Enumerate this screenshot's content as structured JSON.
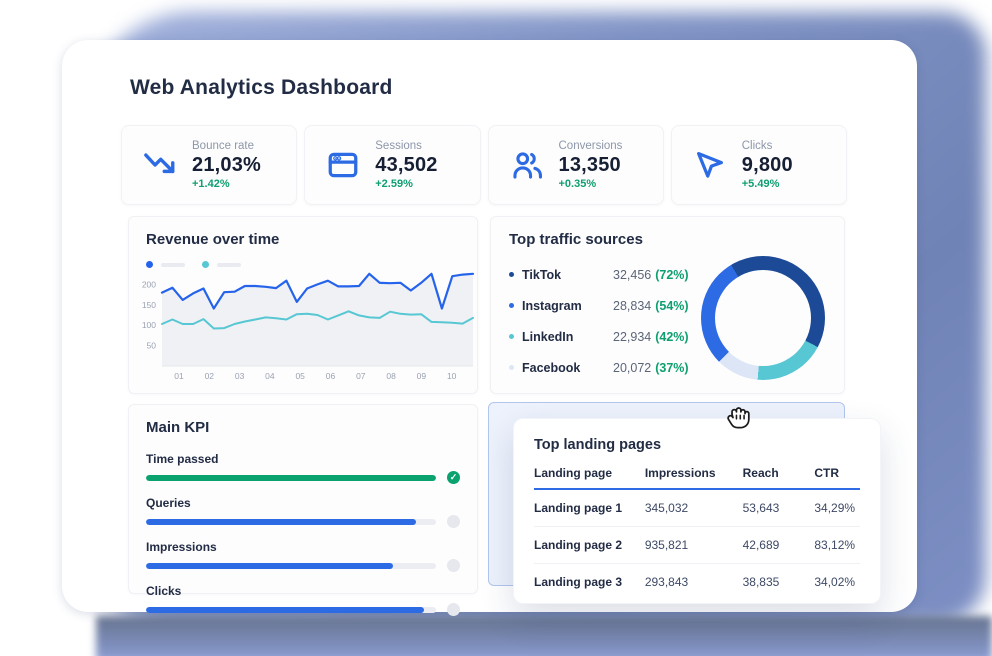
{
  "page": {
    "title": "Web Analytics Dashboard"
  },
  "colors": {
    "accent_blue": "#2c6be4",
    "line_blue": "#2563eb",
    "teal": "#56c7d3",
    "navy": "#1d4a96",
    "light_slice": "#dde6f6",
    "green_text": "#0e9f70",
    "green_bar": "#0aa26e",
    "area_fill": "#f0f1f5"
  },
  "kpi_cards": [
    {
      "icon": "trend-down-icon",
      "label": "Bounce rate",
      "value": "21,03%",
      "delta": "+1.42%"
    },
    {
      "icon": "browser-icon",
      "label": "Sessions",
      "value": "43,502",
      "delta": "+2.59%"
    },
    {
      "icon": "users-icon",
      "label": "Conversions",
      "value": "13,350",
      "delta": "+0.35%"
    },
    {
      "icon": "cursor-icon",
      "label": "Clicks",
      "value": "9,800",
      "delta": "+5.49%"
    }
  ],
  "revenue": {
    "title": "Revenue over time"
  },
  "traffic": {
    "title": "Top traffic sources",
    "sources": [
      {
        "name": "TikTok",
        "value": "32,456",
        "percent": "(72%)",
        "color": "#1d4a96"
      },
      {
        "name": "Instagram",
        "value": "28,834",
        "percent": "(54%)",
        "color": "#2c6be4"
      },
      {
        "name": "LinkedIn",
        "value": "22,934",
        "percent": "(42%)",
        "color": "#56c7d3"
      },
      {
        "name": "Facebook",
        "value": "20,072",
        "percent": "(37%)",
        "color": "#dde6f6"
      }
    ]
  },
  "main_kpi": {
    "title": "Main KPI",
    "bars": [
      {
        "label": "Time passed",
        "percent": 100,
        "color": "#0aa26e",
        "status": "done"
      },
      {
        "label": "Queries",
        "percent": 93,
        "color": "#2c6be4",
        "status": "pending"
      },
      {
        "label": "Impressions",
        "percent": 85,
        "color": "#2c6be4",
        "status": "pending"
      },
      {
        "label": "Clicks",
        "percent": 96,
        "color": "#2c6be4",
        "status": "pending"
      }
    ],
    "done_glyph": "✓"
  },
  "landing": {
    "title": "Top landing pages",
    "columns": [
      "Landing page",
      "Impressions",
      "Reach",
      "CTR"
    ],
    "rows": [
      [
        "Landing page 1",
        "345,032",
        "53,643",
        "34,29%"
      ],
      [
        "Landing page 2",
        "935,821",
        "42,689",
        "83,12%"
      ],
      [
        "Landing page 3",
        "293,843",
        "38,835",
        "34,02%"
      ]
    ]
  },
  "chart_data": [
    {
      "type": "line",
      "title": "Revenue over time",
      "x_labels": [
        "01",
        "02",
        "03",
        "04",
        "05",
        "06",
        "07",
        "08",
        "09",
        "10"
      ],
      "y_ticks": [
        50,
        100,
        150,
        200
      ],
      "ylim": [
        0,
        250
      ],
      "grid": false,
      "legend_position": "top-left",
      "series": [
        {
          "name": "revenue-primary",
          "color": "#2563eb",
          "area_fill": "#f0f1f5",
          "values": [
            180,
            192,
            162,
            178,
            190,
            141,
            181,
            182,
            196,
            196,
            194,
            191,
            209,
            157,
            190,
            200,
            209,
            195,
            195,
            196,
            226,
            204,
            203,
            204,
            185,
            204,
            226,
            141,
            220,
            224,
            226
          ]
        },
        {
          "name": "revenue-secondary",
          "color": "#56c7d3",
          "values": [
            103,
            114,
            103,
            103,
            115,
            92,
            93,
            103,
            109,
            114,
            119,
            117,
            114,
            127,
            128,
            125,
            114,
            124,
            134,
            124,
            119,
            118,
            133,
            128,
            126,
            127,
            108,
            107,
            106,
            104,
            118
          ]
        }
      ]
    },
    {
      "type": "pie",
      "title": "Top traffic sources",
      "donut": true,
      "start_angle_deg": -31,
      "slices": [
        {
          "name": "TikTok",
          "value": 32456,
          "label_percent": "72%",
          "color": "#1d4a96",
          "arc_deg": 149
        },
        {
          "name": "LinkedIn",
          "value": 22934,
          "label_percent": "42%",
          "color": "#56c7d3",
          "arc_deg": 67
        },
        {
          "name": "Facebook",
          "value": 20072,
          "label_percent": "37%",
          "color": "#dde6f6",
          "arc_deg": 40
        },
        {
          "name": "Instagram",
          "value": 28834,
          "label_percent": "54%",
          "color": "#2c6be4",
          "arc_deg": 104
        }
      ]
    }
  ]
}
